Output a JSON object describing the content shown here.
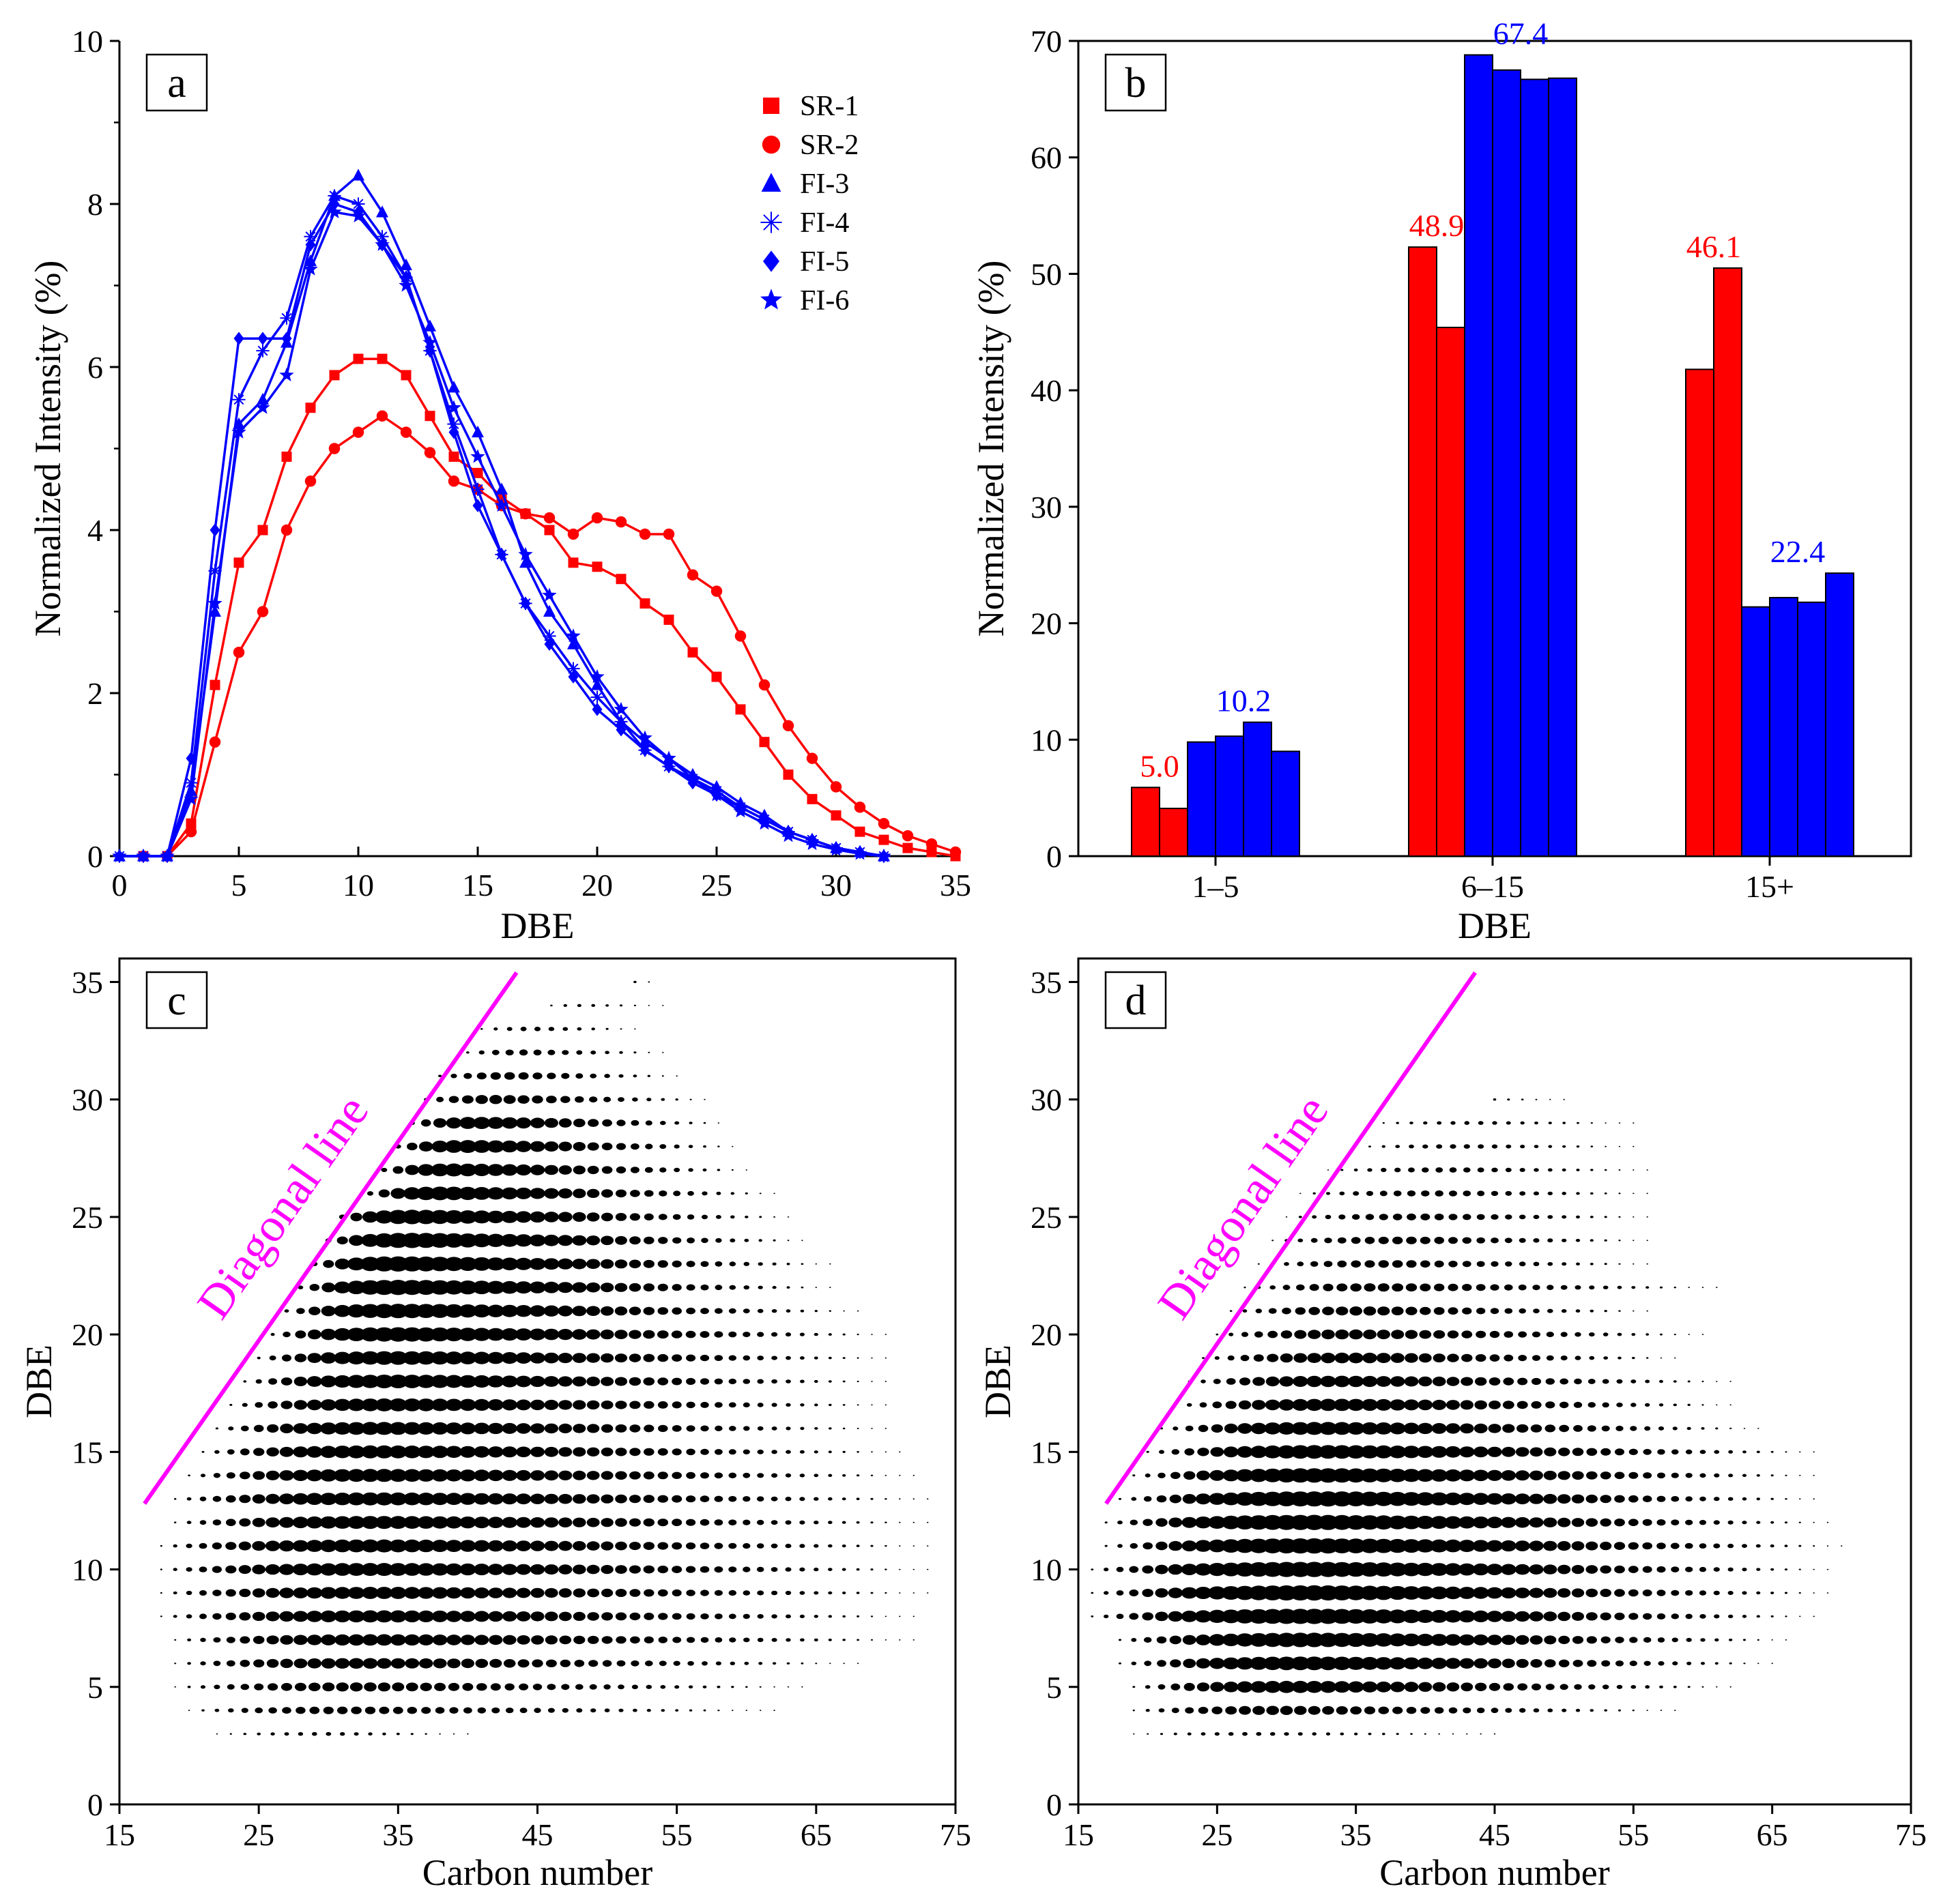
{
  "chart_data": [
    {
      "panel": "a",
      "type": "line",
      "xlabel": "DBE",
      "ylabel": "Normalized Intensity (%)",
      "xlim": [
        0,
        35
      ],
      "ylim": [
        0,
        10
      ],
      "xticks": [
        0,
        5,
        10,
        15,
        20,
        25,
        30,
        35
      ],
      "yticks": [
        0,
        2,
        4,
        6,
        8,
        10
      ],
      "legend_position": "top-right",
      "series": [
        {
          "name": "SR-1",
          "color": "#ff0000",
          "marker": "square",
          "x": [
            1,
            2,
            3,
            4,
            5,
            6,
            7,
            8,
            9,
            10,
            11,
            12,
            13,
            14,
            15,
            16,
            17,
            18,
            19,
            20,
            21,
            22,
            23,
            24,
            25,
            26,
            27,
            28,
            29,
            30,
            31,
            32,
            33,
            34,
            35
          ],
          "y": [
            0,
            0,
            0.4,
            2.1,
            3.6,
            4.0,
            4.9,
            5.5,
            5.9,
            6.1,
            6.1,
            5.9,
            5.4,
            4.9,
            4.7,
            4.4,
            4.2,
            4.0,
            3.6,
            3.55,
            3.4,
            3.1,
            2.9,
            2.5,
            2.2,
            1.8,
            1.4,
            1.0,
            0.7,
            0.5,
            0.3,
            0.2,
            0.1,
            0.05,
            0
          ]
        },
        {
          "name": "SR-2",
          "color": "#ff0000",
          "marker": "circle",
          "x": [
            1,
            2,
            3,
            4,
            5,
            6,
            7,
            8,
            9,
            10,
            11,
            12,
            13,
            14,
            15,
            16,
            17,
            18,
            19,
            20,
            21,
            22,
            23,
            24,
            25,
            26,
            27,
            28,
            29,
            30,
            31,
            32,
            33,
            34,
            35
          ],
          "y": [
            0,
            0,
            0.3,
            1.4,
            2.5,
            3.0,
            4.0,
            4.6,
            5.0,
            5.2,
            5.4,
            5.2,
            4.95,
            4.6,
            4.5,
            4.3,
            4.2,
            4.15,
            3.95,
            4.15,
            4.1,
            3.95,
            3.95,
            3.45,
            3.25,
            2.7,
            2.1,
            1.6,
            1.2,
            0.85,
            0.6,
            0.4,
            0.25,
            0.15,
            0.05
          ]
        },
        {
          "name": "FI-3",
          "color": "#0000ff",
          "marker": "triangle",
          "x": [
            0,
            1,
            2,
            3,
            4,
            5,
            6,
            7,
            8,
            9,
            10,
            11,
            12,
            13,
            14,
            15,
            16,
            17,
            18,
            19,
            20,
            21,
            22,
            23,
            24,
            25,
            26,
            27,
            28,
            29,
            30,
            31,
            32
          ],
          "y": [
            0,
            0,
            0,
            0.8,
            3.0,
            5.3,
            5.6,
            6.3,
            7.3,
            8.1,
            8.35,
            7.9,
            7.25,
            6.5,
            5.75,
            5.2,
            4.5,
            3.6,
            3.0,
            2.6,
            2.1,
            1.65,
            1.4,
            1.2,
            1.0,
            0.85,
            0.65,
            0.5,
            0.3,
            0.2,
            0.1,
            0.05,
            0
          ]
        },
        {
          "name": "FI-4",
          "color": "#0000ff",
          "marker": "asterisk",
          "x": [
            0,
            1,
            2,
            3,
            4,
            5,
            6,
            7,
            8,
            9,
            10,
            11,
            12,
            13,
            14,
            15,
            16,
            17,
            18,
            19,
            20,
            21,
            22,
            23,
            24,
            25,
            26,
            27,
            28,
            29,
            30,
            31,
            32
          ],
          "y": [
            0,
            0,
            0,
            0.9,
            3.5,
            5.6,
            6.2,
            6.6,
            7.6,
            8.1,
            8.0,
            7.6,
            7.1,
            6.2,
            5.3,
            4.5,
            3.7,
            3.1,
            2.7,
            2.3,
            1.95,
            1.65,
            1.3,
            1.1,
            0.95,
            0.8,
            0.6,
            0.45,
            0.3,
            0.2,
            0.1,
            0.05,
            0
          ]
        },
        {
          "name": "FI-5",
          "color": "#0000ff",
          "marker": "diamond",
          "x": [
            0,
            1,
            2,
            3,
            4,
            5,
            6,
            7,
            8,
            9,
            10,
            11,
            12,
            13,
            14,
            15,
            16,
            17,
            18,
            19,
            20,
            21,
            22,
            23,
            24,
            25,
            26,
            27,
            28,
            29,
            30,
            31,
            32
          ],
          "y": [
            0,
            0,
            0,
            1.2,
            4.0,
            6.35,
            6.35,
            6.35,
            7.5,
            8.0,
            7.9,
            7.5,
            7.1,
            6.2,
            5.2,
            4.3,
            3.7,
            3.1,
            2.6,
            2.2,
            1.8,
            1.55,
            1.3,
            1.1,
            0.9,
            0.75,
            0.6,
            0.45,
            0.3,
            0.2,
            0.1,
            0.05,
            0
          ]
        },
        {
          "name": "FI-6",
          "color": "#0000ff",
          "marker": "star",
          "x": [
            0,
            1,
            2,
            3,
            4,
            5,
            6,
            7,
            8,
            9,
            10,
            11,
            12,
            13,
            14,
            15,
            16,
            17,
            18,
            19,
            20,
            21,
            22,
            23,
            24,
            25,
            26,
            27,
            28,
            29,
            30,
            31,
            32
          ],
          "y": [
            0,
            0,
            0,
            0.7,
            3.1,
            5.2,
            5.5,
            5.9,
            7.2,
            7.9,
            7.85,
            7.5,
            7.0,
            6.3,
            5.5,
            4.9,
            4.3,
            3.7,
            3.2,
            2.7,
            2.2,
            1.8,
            1.45,
            1.2,
            0.95,
            0.75,
            0.55,
            0.4,
            0.25,
            0.15,
            0.08,
            0.03,
            0
          ]
        }
      ]
    },
    {
      "panel": "b",
      "type": "bar",
      "xlabel": "DBE",
      "ylabel": "Normalized Intensity (%)",
      "ylim": [
        0,
        70
      ],
      "yticks": [
        0,
        10,
        20,
        30,
        40,
        50,
        60,
        70
      ],
      "categories": [
        "1–5",
        "6–15",
        "15+"
      ],
      "series": [
        {
          "name": "SR-1",
          "color": "#ff0000",
          "values": [
            5.9,
            52.3,
            41.8
          ]
        },
        {
          "name": "SR-2",
          "color": "#ff0000",
          "values": [
            4.1,
            45.4,
            50.5
          ]
        },
        {
          "name": "FI-3",
          "color": "#0000ff",
          "values": [
            9.8,
            68.8,
            21.4
          ]
        },
        {
          "name": "FI-4",
          "color": "#0000ff",
          "values": [
            10.3,
            67.5,
            22.2
          ]
        },
        {
          "name": "FI-5",
          "color": "#0000ff",
          "values": [
            11.5,
            66.7,
            21.8
          ]
        },
        {
          "name": "FI-6",
          "color": "#0000ff",
          "values": [
            9.0,
            66.8,
            24.3
          ]
        }
      ],
      "annotations": [
        {
          "category": "1–5",
          "group": "SR",
          "text": "5.0",
          "color": "#ff0000"
        },
        {
          "category": "1–5",
          "group": "FI",
          "text": "10.2",
          "color": "#0000ff"
        },
        {
          "category": "6–15",
          "group": "SR",
          "text": "48.9",
          "color": "#ff0000"
        },
        {
          "category": "6–15",
          "group": "FI",
          "text": "67.4",
          "color": "#0000ff"
        },
        {
          "category": "15+",
          "group": "SR",
          "text": "46.1",
          "color": "#ff0000"
        },
        {
          "category": "15+",
          "group": "FI",
          "text": "22.4",
          "color": "#0000ff"
        }
      ]
    },
    {
      "panel": "c",
      "type": "scatter",
      "xlabel": "Carbon number",
      "ylabel": "DBE",
      "xlim": [
        15,
        75
      ],
      "ylim": [
        0,
        36
      ],
      "xticks": [
        15,
        25,
        35,
        45,
        55,
        65,
        75
      ],
      "yticks": [
        0,
        5,
        10,
        15,
        20,
        25,
        30,
        35
      ],
      "annotation": "Diagonal line",
      "diagonal_line": {
        "from": [
          16.8,
          12.8
        ],
        "to": [
          43.5,
          35.4
        ]
      },
      "bubble_rows": [
        {
          "dbe": 3,
          "cmin": 22,
          "cmax": 40,
          "max_size": 0.25,
          "peak_c": 30
        },
        {
          "dbe": 4,
          "cmin": 20,
          "cmax": 62,
          "max_size": 0.5,
          "peak_c": 32
        },
        {
          "dbe": 5,
          "cmin": 19,
          "cmax": 64,
          "max_size": 0.6,
          "peak_c": 33
        },
        {
          "dbe": 6,
          "cmin": 19,
          "cmax": 68,
          "max_size": 0.7,
          "peak_c": 33
        },
        {
          "dbe": 7,
          "cmin": 19,
          "cmax": 72,
          "max_size": 0.75,
          "peak_c": 34
        },
        {
          "dbe": 8,
          "cmin": 18,
          "cmax": 72,
          "max_size": 0.8,
          "peak_c": 34
        },
        {
          "dbe": 9,
          "cmin": 18,
          "cmax": 73,
          "max_size": 0.8,
          "peak_c": 34
        },
        {
          "dbe": 10,
          "cmin": 18,
          "cmax": 73,
          "max_size": 0.85,
          "peak_c": 34
        },
        {
          "dbe": 11,
          "cmin": 18,
          "cmax": 73,
          "max_size": 0.85,
          "peak_c": 34
        },
        {
          "dbe": 12,
          "cmin": 19,
          "cmax": 73,
          "max_size": 0.85,
          "peak_c": 34
        },
        {
          "dbe": 13,
          "cmin": 19,
          "cmax": 73,
          "max_size": 0.85,
          "peak_c": 34
        },
        {
          "dbe": 14,
          "cmin": 20,
          "cmax": 72,
          "max_size": 0.85,
          "peak_c": 34
        },
        {
          "dbe": 15,
          "cmin": 21,
          "cmax": 71,
          "max_size": 0.85,
          "peak_c": 34
        },
        {
          "dbe": 16,
          "cmin": 22,
          "cmax": 70,
          "max_size": 0.85,
          "peak_c": 34
        },
        {
          "dbe": 17,
          "cmin": 23,
          "cmax": 70,
          "max_size": 0.85,
          "peak_c": 35
        },
        {
          "dbe": 18,
          "cmin": 24,
          "cmax": 70,
          "max_size": 0.9,
          "peak_c": 35
        },
        {
          "dbe": 19,
          "cmin": 25,
          "cmax": 70,
          "max_size": 0.9,
          "peak_c": 35
        },
        {
          "dbe": 20,
          "cmin": 26,
          "cmax": 70,
          "max_size": 0.95,
          "peak_c": 35
        },
        {
          "dbe": 21,
          "cmin": 27,
          "cmax": 68,
          "max_size": 0.95,
          "peak_c": 35
        },
        {
          "dbe": 22,
          "cmin": 28,
          "cmax": 66,
          "max_size": 1.0,
          "peak_c": 35
        },
        {
          "dbe": 23,
          "cmin": 29,
          "cmax": 66,
          "max_size": 1.0,
          "peak_c": 35
        },
        {
          "dbe": 24,
          "cmin": 30,
          "cmax": 64,
          "max_size": 1.0,
          "peak_c": 36
        },
        {
          "dbe": 25,
          "cmin": 31,
          "cmax": 63,
          "max_size": 0.95,
          "peak_c": 36
        },
        {
          "dbe": 26,
          "cmin": 33,
          "cmax": 62,
          "max_size": 0.9,
          "peak_c": 38
        },
        {
          "dbe": 27,
          "cmin": 34,
          "cmax": 60,
          "max_size": 0.85,
          "peak_c": 39
        },
        {
          "dbe": 28,
          "cmin": 35,
          "cmax": 59,
          "max_size": 0.85,
          "peak_c": 40
        },
        {
          "dbe": 29,
          "cmin": 36,
          "cmax": 58,
          "max_size": 0.8,
          "peak_c": 41
        },
        {
          "dbe": 30,
          "cmin": 37,
          "cmax": 57,
          "max_size": 0.6,
          "peak_c": 42
        },
        {
          "dbe": 31,
          "cmin": 38,
          "cmax": 55,
          "max_size": 0.5,
          "peak_c": 43
        },
        {
          "dbe": 32,
          "cmin": 40,
          "cmax": 54,
          "max_size": 0.4,
          "peak_c": 44
        },
        {
          "dbe": 33,
          "cmin": 41,
          "cmax": 52,
          "max_size": 0.3,
          "peak_c": 45
        },
        {
          "dbe": 34,
          "cmin": 46,
          "cmax": 54,
          "max_size": 0.2,
          "peak_c": 48
        },
        {
          "dbe": 35,
          "cmin": 52,
          "cmax": 53,
          "max_size": 0.15,
          "peak_c": 52
        }
      ]
    },
    {
      "panel": "d",
      "type": "scatter",
      "xlabel": "Carbon number",
      "ylabel": "DBE",
      "xlim": [
        15,
        75
      ],
      "ylim": [
        0,
        36
      ],
      "xticks": [
        15,
        25,
        35,
        45,
        55,
        65,
        75
      ],
      "yticks": [
        0,
        5,
        10,
        15,
        20,
        25,
        30,
        35
      ],
      "annotation": "Diagonal line",
      "diagonal_line": {
        "from": [
          17.0,
          12.8
        ],
        "to": [
          43.6,
          35.4
        ]
      },
      "bubble_rows": [
        {
          "dbe": 3,
          "cmin": 19,
          "cmax": 45,
          "max_size": 0.25,
          "peak_c": 28
        },
        {
          "dbe": 4,
          "cmin": 19,
          "cmax": 58,
          "max_size": 0.6,
          "peak_c": 30
        },
        {
          "dbe": 5,
          "cmin": 19,
          "cmax": 62,
          "max_size": 0.8,
          "peak_c": 31
        },
        {
          "dbe": 6,
          "cmin": 18,
          "cmax": 65,
          "max_size": 0.9,
          "peak_c": 32
        },
        {
          "dbe": 7,
          "cmin": 18,
          "cmax": 66,
          "max_size": 0.95,
          "peak_c": 32
        },
        {
          "dbe": 8,
          "cmin": 16,
          "cmax": 68,
          "max_size": 1.0,
          "peak_c": 32
        },
        {
          "dbe": 9,
          "cmin": 16,
          "cmax": 69,
          "max_size": 1.0,
          "peak_c": 32
        },
        {
          "dbe": 10,
          "cmin": 16,
          "cmax": 69,
          "max_size": 1.0,
          "peak_c": 32
        },
        {
          "dbe": 11,
          "cmin": 17,
          "cmax": 70,
          "max_size": 1.0,
          "peak_c": 32
        },
        {
          "dbe": 12,
          "cmin": 17,
          "cmax": 69,
          "max_size": 1.0,
          "peak_c": 32
        },
        {
          "dbe": 13,
          "cmin": 18,
          "cmax": 68,
          "max_size": 1.0,
          "peak_c": 33
        },
        {
          "dbe": 14,
          "cmin": 19,
          "cmax": 68,
          "max_size": 0.95,
          "peak_c": 33
        },
        {
          "dbe": 15,
          "cmin": 20,
          "cmax": 68,
          "max_size": 0.9,
          "peak_c": 33
        },
        {
          "dbe": 16,
          "cmin": 21,
          "cmax": 64,
          "max_size": 0.85,
          "peak_c": 33
        },
        {
          "dbe": 17,
          "cmin": 22,
          "cmax": 62,
          "max_size": 0.8,
          "peak_c": 34
        },
        {
          "dbe": 18,
          "cmin": 23,
          "cmax": 62,
          "max_size": 0.75,
          "peak_c": 34
        },
        {
          "dbe": 19,
          "cmin": 24,
          "cmax": 58,
          "max_size": 0.7,
          "peak_c": 35
        },
        {
          "dbe": 20,
          "cmin": 25,
          "cmax": 60,
          "max_size": 0.65,
          "peak_c": 35
        },
        {
          "dbe": 21,
          "cmin": 26,
          "cmax": 56,
          "max_size": 0.6,
          "peak_c": 36
        },
        {
          "dbe": 22,
          "cmin": 27,
          "cmax": 61,
          "max_size": 0.55,
          "peak_c": 37
        },
        {
          "dbe": 23,
          "cmin": 28,
          "cmax": 56,
          "max_size": 0.5,
          "peak_c": 38
        },
        {
          "dbe": 24,
          "cmin": 29,
          "cmax": 56,
          "max_size": 0.5,
          "peak_c": 39
        },
        {
          "dbe": 25,
          "cmin": 30,
          "cmax": 56,
          "max_size": 0.45,
          "peak_c": 40
        },
        {
          "dbe": 26,
          "cmin": 31,
          "cmax": 56,
          "max_size": 0.4,
          "peak_c": 41
        },
        {
          "dbe": 27,
          "cmin": 33,
          "cmax": 56,
          "max_size": 0.35,
          "peak_c": 42
        },
        {
          "dbe": 28,
          "cmin": 35,
          "cmax": 55,
          "max_size": 0.3,
          "peak_c": 43
        },
        {
          "dbe": 29,
          "cmin": 36,
          "cmax": 55,
          "max_size": 0.25,
          "peak_c": 44
        },
        {
          "dbe": 30,
          "cmin": 45,
          "cmax": 50,
          "max_size": 0.15,
          "peak_c": 45
        }
      ]
    }
  ]
}
